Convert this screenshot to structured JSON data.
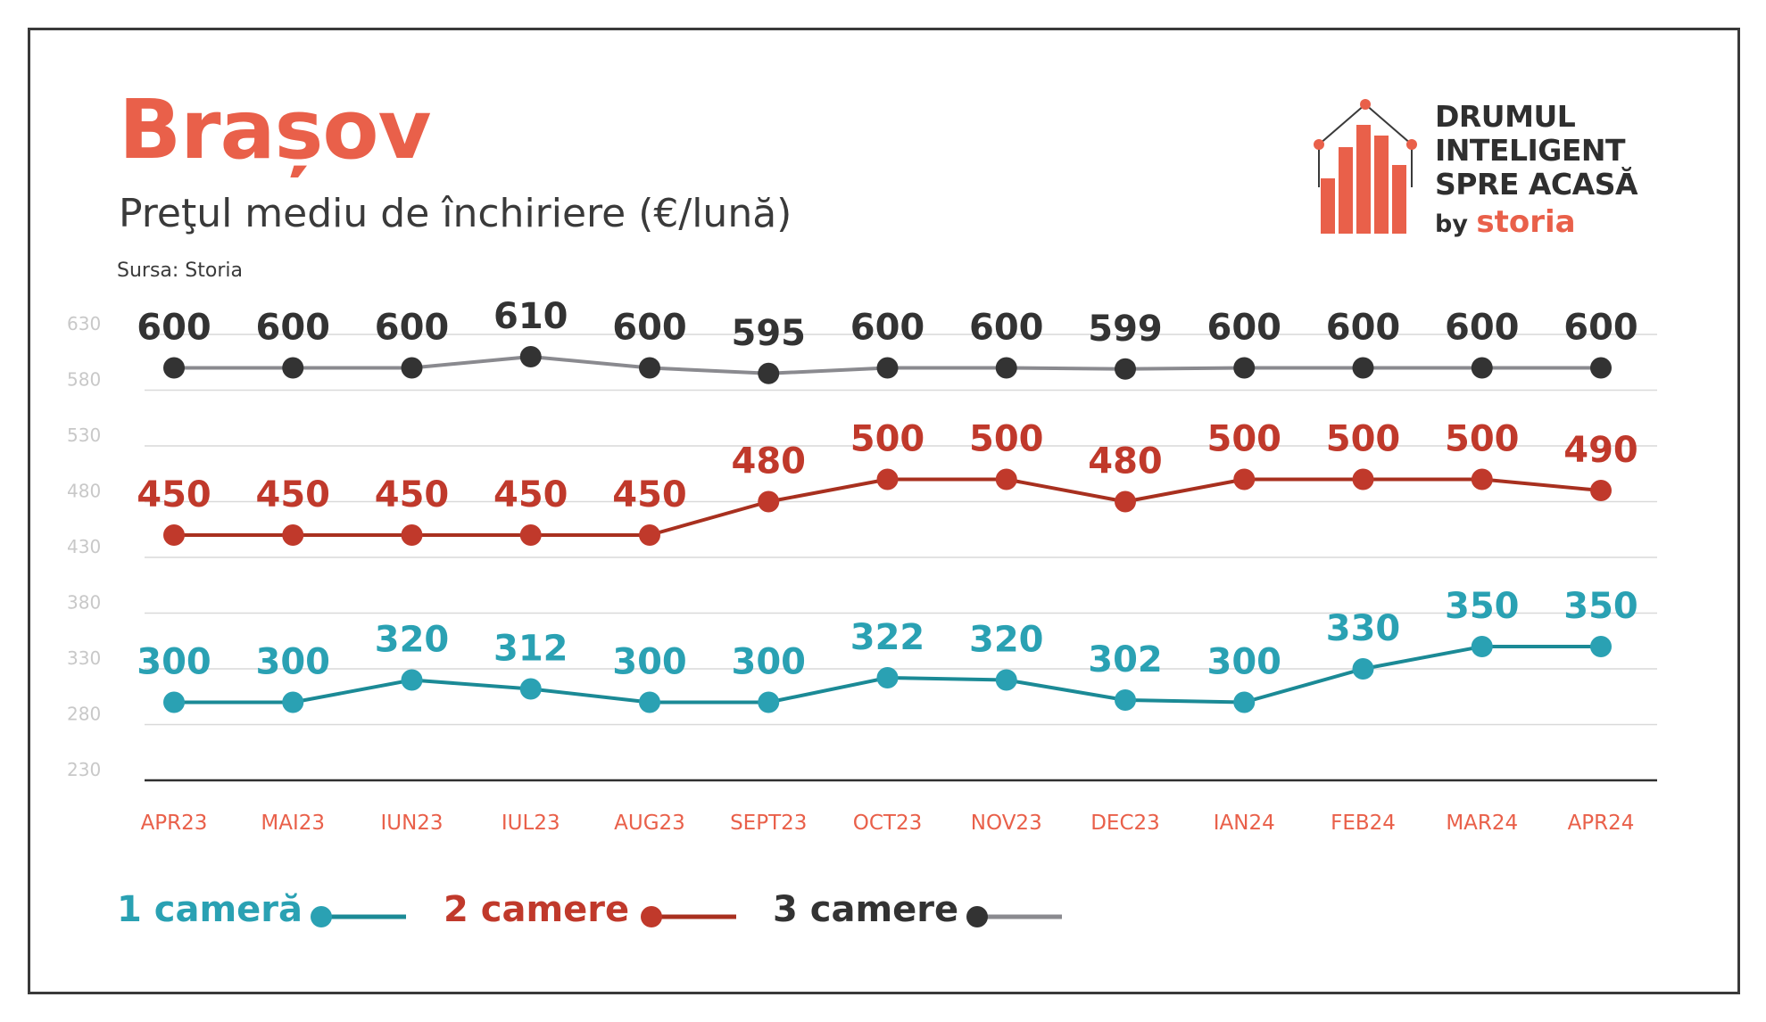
{
  "header": {
    "title": "Brașov",
    "subtitle": "Preţul mediu de închiriere (€/lună)",
    "source": "Sursa: Storia"
  },
  "logo": {
    "line1": "DRUMUL",
    "line2": "INTELIGENT",
    "line3": "SPRE ACASĂ",
    "by": "by",
    "brand": "storia"
  },
  "colors": {
    "accent": "#e9604a",
    "series_1": "#2aa1b3",
    "series_2": "#c0392b",
    "series_3": "#333333",
    "line_3": "#8a8a8f",
    "axis_text": "#e9604a",
    "grid": "#d9d9d9"
  },
  "chart_data": {
    "type": "line",
    "categories": [
      "APR23",
      "MAI23",
      "IUN23",
      "IUL23",
      "AUG23",
      "SEPT23",
      "OCT23",
      "NOV23",
      "DEC23",
      "IAN24",
      "FEB24",
      "MAR24",
      "APR24"
    ],
    "y_ticks": [
      230,
      280,
      330,
      380,
      430,
      480,
      530,
      580,
      630
    ],
    "ylim": [
      230,
      630
    ],
    "grid": true,
    "legend_position": "bottom-left",
    "series": [
      {
        "name": "1 cameră",
        "color": "#2aa1b3",
        "line_color": "#1b8a96",
        "values": [
          300,
          300,
          320,
          312,
          300,
          300,
          322,
          320,
          302,
          300,
          330,
          350,
          350
        ]
      },
      {
        "name": "2 camere",
        "color": "#c0392b",
        "line_color": "#a8301f",
        "values": [
          450,
          450,
          450,
          450,
          450,
          480,
          500,
          500,
          480,
          500,
          500,
          500,
          490
        ]
      },
      {
        "name": "3 camere",
        "color": "#333333",
        "line_color": "#8a8a8f",
        "values": [
          600,
          600,
          600,
          610,
          600,
          595,
          600,
          600,
          599,
          600,
          600,
          600,
          600
        ]
      }
    ]
  }
}
